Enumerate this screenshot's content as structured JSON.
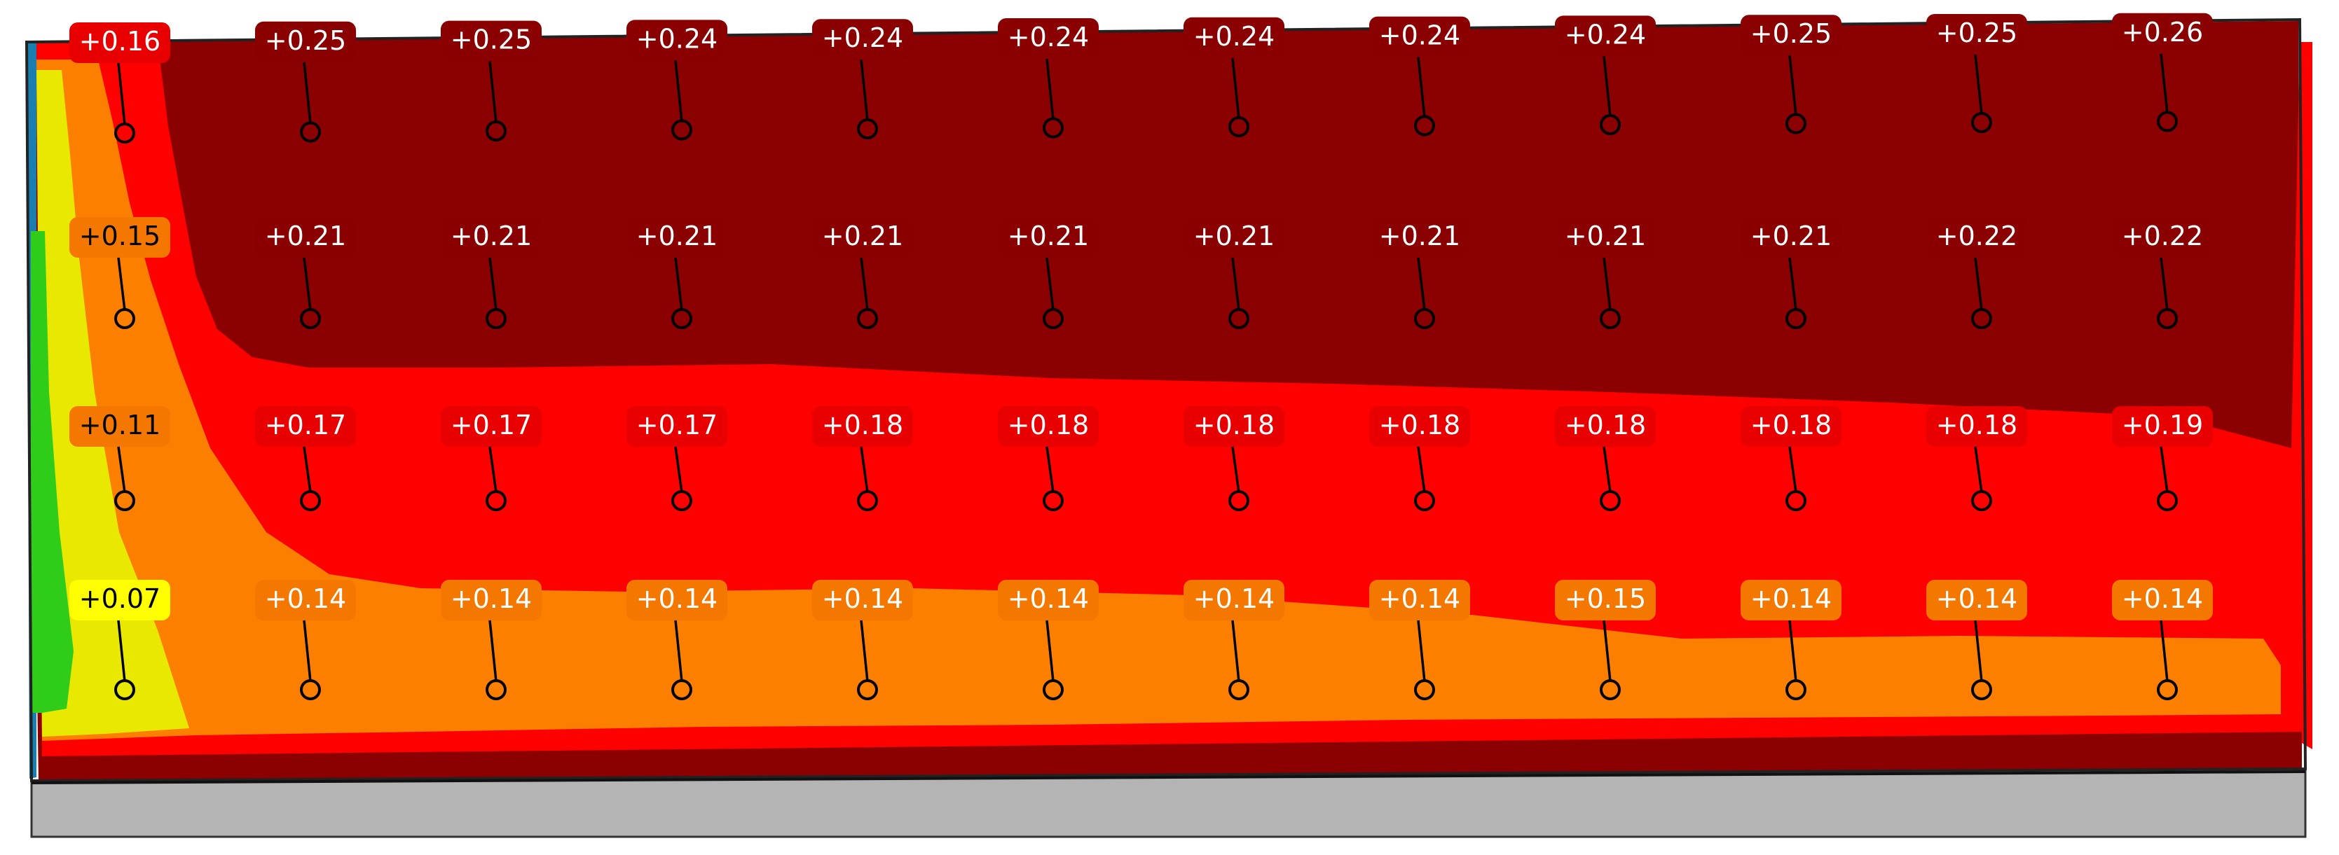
{
  "chart_data": {
    "type": "heatmap",
    "title": "",
    "xlabel": "",
    "ylabel": "",
    "grid": false,
    "legend": "none",
    "rows": 4,
    "columns": 12,
    "values": [
      [
        "+0.16",
        "+0.25",
        "+0.25",
        "+0.24",
        "+0.24",
        "+0.24",
        "+0.24",
        "+0.24",
        "+0.24",
        "+0.25",
        "+0.25",
        "+0.26"
      ],
      [
        "+0.15",
        "+0.21",
        "+0.21",
        "+0.21",
        "+0.21",
        "+0.21",
        "+0.21",
        "+0.21",
        "+0.21",
        "+0.21",
        "+0.22",
        "+0.22"
      ],
      [
        "+0.11",
        "+0.17",
        "+0.17",
        "+0.17",
        "+0.18",
        "+0.18",
        "+0.18",
        "+0.18",
        "+0.18",
        "+0.18",
        "+0.18",
        "+0.19"
      ],
      [
        "+0.07",
        "+0.14",
        "+0.14",
        "+0.14",
        "+0.14",
        "+0.14",
        "+0.14",
        "+0.14",
        "+0.15",
        "+0.14",
        "+0.14",
        "+0.14"
      ]
    ],
    "colors": {
      "darkred": "#8b0000",
      "red": "#fe0000",
      "orange": "#fd7f00",
      "yellow": "#e8e800",
      "green": "#2fcc1a",
      "base_gray": "#b4b4b4",
      "label_darkred": "#8a0000",
      "label_red": "#e80000",
      "label_orange": "#f47800",
      "label_yellow": "#ffff00"
    }
  }
}
